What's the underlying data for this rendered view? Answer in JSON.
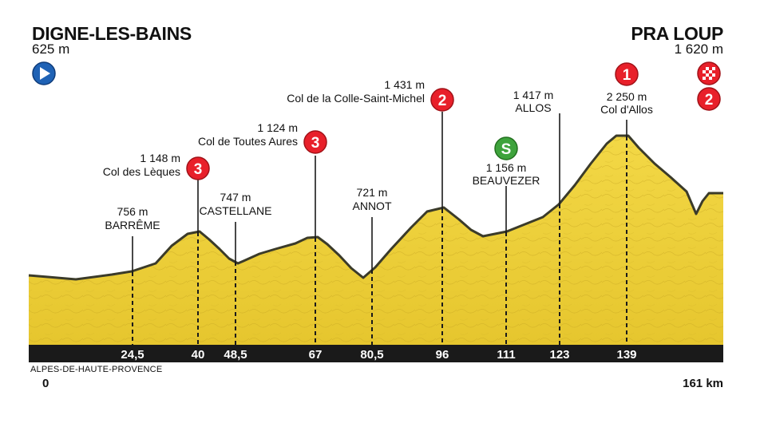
{
  "start": {
    "name": "DIGNE-LES-BAINS",
    "altitude": "625 m",
    "icon": "start-arrow-icon"
  },
  "finish": {
    "name": "PRA LOUP",
    "altitude": "1 620 m",
    "icons": [
      "finish-flag-icon",
      "category-2-climb-icon"
    ],
    "category": "2"
  },
  "region": "ALPES-DE-HAUTE-PROVENCE",
  "distance": {
    "start": "0",
    "end": "161 km"
  },
  "colors": {
    "terrain": "#f0d43c",
    "terrain_edge": "#3b3b2a",
    "axis": "#1a1a1a",
    "climb_badge": "#e8202a",
    "sprint_badge": "#3ea33c",
    "start_badge": "#1f62b5"
  },
  "markers": [
    {
      "km": "24,5",
      "lines": [
        "756 m",
        "BARRÊME"
      ],
      "badge": null
    },
    {
      "km": "40",
      "lines": [
        "1 148 m",
        "Col des Lèques"
      ],
      "badge": "3",
      "badge_type": "climb"
    },
    {
      "km": "48,5",
      "lines": [
        "747 m",
        "CASTELLANE"
      ],
      "badge": null
    },
    {
      "km": "67",
      "lines": [
        "1 124 m",
        "Col de Toutes Aures"
      ],
      "badge": "3",
      "badge_type": "climb"
    },
    {
      "km": "80,5",
      "lines": [
        "721 m",
        "ANNOT"
      ],
      "badge": null
    },
    {
      "km": "96",
      "lines": [
        "1 431 m",
        "Col de la Colle-Saint-Michel"
      ],
      "badge": "2",
      "badge_type": "climb"
    },
    {
      "km": "111",
      "lines": [
        "1 156 m",
        "BEAUVEZER"
      ],
      "badge": "S",
      "badge_type": "sprint"
    },
    {
      "km": "123",
      "lines": [
        "1 417 m",
        "ALLOS"
      ],
      "badge": null
    },
    {
      "km": "139",
      "lines": [
        "2 250 m",
        "Col d'Allos"
      ],
      "badge": "1",
      "badge_type": "climb"
    }
  ]
}
